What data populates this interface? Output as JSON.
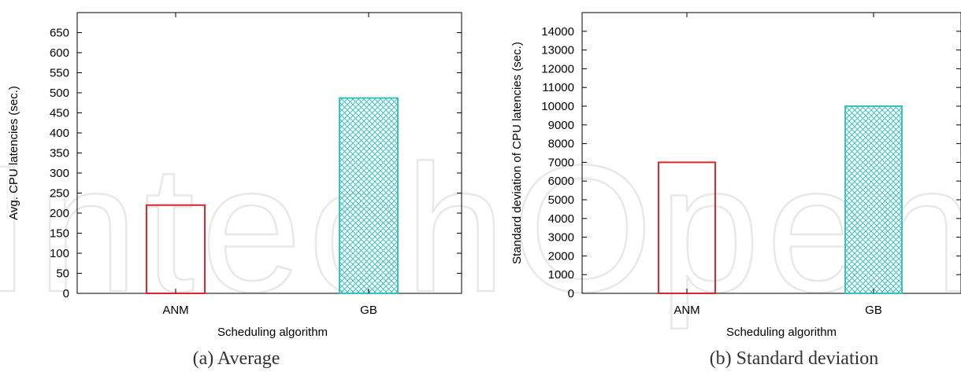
{
  "chart_data": [
    {
      "type": "bar",
      "categories": [
        "ANM",
        "GB"
      ],
      "values": [
        220,
        487
      ],
      "xlabel": "Scheduling algorithm",
      "ylabel": "Avg. CPU latencies (sec.)",
      "ylim": [
        0,
        700
      ],
      "yticks": [
        "0",
        "50",
        "100",
        "150",
        "200",
        "250",
        "300",
        "350",
        "400",
        "450",
        "500",
        "550",
        "600",
        "650"
      ],
      "caption": "(a) Average",
      "bar_styles": [
        "outline-red",
        "crosshatch-teal"
      ],
      "colors": {
        "ANM": "#e0262b",
        "GB": "#3cbfbf"
      },
      "grid": false
    },
    {
      "type": "bar",
      "categories": [
        "ANM",
        "GB"
      ],
      "values": [
        7000,
        10000
      ],
      "xlabel": "Scheduling algorithm",
      "ylabel": "Standard deviation of  CPU latencies (sec.)",
      "ylim": [
        0,
        15000
      ],
      "yticks": [
        "0",
        "1000",
        "2000",
        "3000",
        "4000",
        "5000",
        "6000",
        "7000",
        "8000",
        "9000",
        "10000",
        "11000",
        "12000",
        "13000",
        "14000"
      ],
      "caption": "(b) Standard deviation",
      "bar_styles": [
        "outline-red",
        "crosshatch-teal"
      ],
      "colors": {
        "ANM": "#e0262b",
        "GB": "#3cbfbf"
      },
      "grid": false
    }
  ],
  "watermark": "IntechOpen"
}
